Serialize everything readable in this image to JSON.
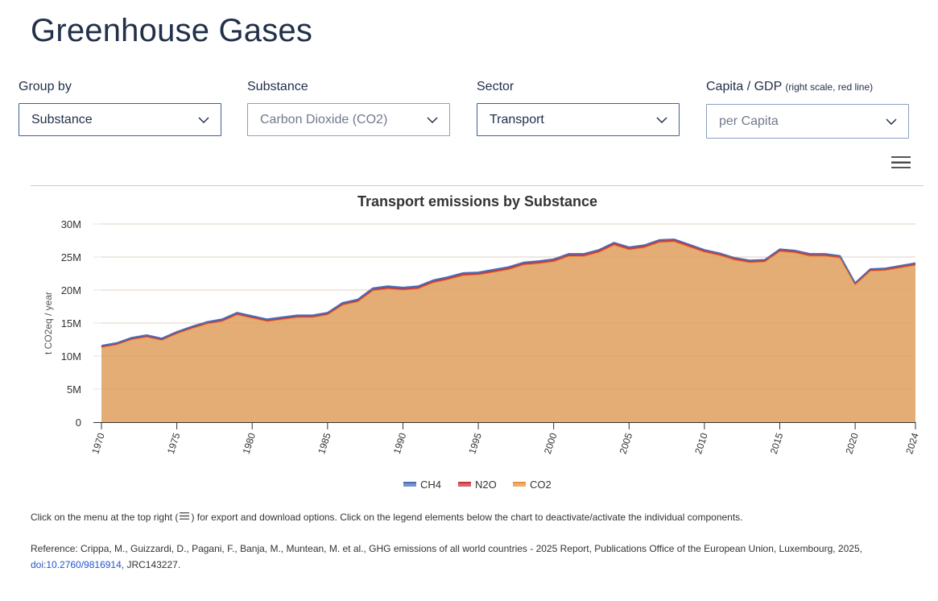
{
  "page": {
    "title": "Greenhouse Gases"
  },
  "filters": [
    {
      "id": "group-by",
      "label": "Group by",
      "label_note": "",
      "value": "Substance",
      "muted": false
    },
    {
      "id": "substance",
      "label": "Substance",
      "label_note": "",
      "value": "Carbon Dioxide (CO2)",
      "muted": true
    },
    {
      "id": "sector",
      "label": "Sector",
      "label_note": "",
      "value": "Transport",
      "muted": false
    },
    {
      "id": "capita-gdp",
      "label": "Capita / GDP",
      "label_note": "(right scale, red line)",
      "value": "per Capita",
      "muted": true
    }
  ],
  "menu": {
    "icon": "hamburger-menu-icon"
  },
  "colors": {
    "CH4": "#4a6db5",
    "N2O": "#c8313a",
    "CO2": "#e3a96e",
    "CO2_line": "#e8923a"
  },
  "chart_data": {
    "type": "area",
    "stacked": true,
    "title": "Transport emissions by Substance",
    "xlabel": "",
    "ylabel": "t CO2eq / year",
    "ylim": [
      0,
      30000000
    ],
    "yticks": [
      0,
      5000000,
      10000000,
      15000000,
      20000000,
      25000000,
      30000000
    ],
    "ytick_labels": [
      "0",
      "5M",
      "10M",
      "15M",
      "20M",
      "25M",
      "30M"
    ],
    "xlim": [
      1970,
      2024
    ],
    "xticks": [
      1970,
      1975,
      1980,
      1985,
      1990,
      1995,
      2000,
      2005,
      2010,
      2015,
      2020,
      2024
    ],
    "xtick_labels": [
      "1970",
      "1975",
      "1980",
      "1985",
      "1990",
      "1995",
      "2000",
      "2005",
      "2010",
      "2015",
      "2020",
      "2024"
    ],
    "grid": true,
    "legend_position": "bottom",
    "x": [
      1970,
      1971,
      1972,
      1973,
      1974,
      1975,
      1976,
      1977,
      1978,
      1979,
      1980,
      1981,
      1982,
      1983,
      1984,
      1985,
      1986,
      1987,
      1988,
      1989,
      1990,
      1991,
      1992,
      1993,
      1994,
      1995,
      1996,
      1997,
      1998,
      1999,
      2000,
      2001,
      2002,
      2003,
      2004,
      2005,
      2006,
      2007,
      2008,
      2009,
      2010,
      2011,
      2012,
      2013,
      2014,
      2015,
      2016,
      2017,
      2018,
      2019,
      2020,
      2021,
      2022,
      2023,
      2024
    ],
    "series": [
      {
        "name": "CH4",
        "values": [
          150000,
          155000,
          160000,
          165000,
          160000,
          165000,
          170000,
          175000,
          180000,
          185000,
          180000,
          175000,
          175000,
          175000,
          175000,
          175000,
          180000,
          185000,
          190000,
          190000,
          185000,
          180000,
          175000,
          170000,
          165000,
          160000,
          155000,
          150000,
          145000,
          140000,
          135000,
          130000,
          125000,
          120000,
          115000,
          110000,
          105000,
          100000,
          95000,
          90000,
          88000,
          86000,
          84000,
          82000,
          80000,
          80000,
          78000,
          76000,
          75000,
          74000,
          65000,
          70000,
          70000,
          70000,
          70000
        ]
      },
      {
        "name": "N2O",
        "values": [
          100000,
          105000,
          110000,
          115000,
          110000,
          120000,
          125000,
          130000,
          135000,
          140000,
          140000,
          140000,
          145000,
          145000,
          145000,
          150000,
          160000,
          165000,
          180000,
          185000,
          190000,
          195000,
          200000,
          205000,
          210000,
          215000,
          220000,
          225000,
          230000,
          235000,
          240000,
          245000,
          245000,
          250000,
          260000,
          255000,
          260000,
          265000,
          265000,
          260000,
          255000,
          250000,
          245000,
          240000,
          240000,
          255000,
          255000,
          250000,
          250000,
          250000,
          210000,
          230000,
          235000,
          240000,
          245000
        ]
      },
      {
        "name": "CO2",
        "values": [
          11350000,
          11740000,
          12530000,
          12920000,
          12430000,
          13415000,
          14205000,
          14895000,
          15285000,
          16275000,
          15780000,
          15285000,
          15580000,
          15880000,
          15880000,
          16275000,
          17760000,
          18250000,
          19930000,
          20225000,
          20025000,
          20225000,
          21125000,
          21625000,
          22225000,
          22325000,
          22725000,
          23125000,
          23825000,
          24025000,
          24325000,
          25125000,
          25130000,
          25730000,
          26825000,
          26135000,
          26435000,
          27235000,
          27340000,
          26550000,
          25757000,
          25264000,
          24571000,
          24178000,
          24280000,
          25865000,
          25667000,
          25174000,
          25175000,
          24876000,
          20825000,
          22900000,
          22995000,
          23390000,
          23785000
        ]
      }
    ]
  },
  "footer": {
    "instructions_before": "Click on the menu at the top right (",
    "instructions_after": ") for export and download options. Click on the legend elements below the chart to deactivate/activate the individual components.",
    "reference_text": "Reference: Crippa, M., Guizzardi, D., Pagani, F., Banja, M., Muntean, M. et al., GHG emissions of all world countries - 2025 Report, Publications Office of the European Union, Luxembourg, 2025,",
    "doi_link": "doi:10.2760/9816914",
    "reference_suffix": ", JRC143227."
  }
}
